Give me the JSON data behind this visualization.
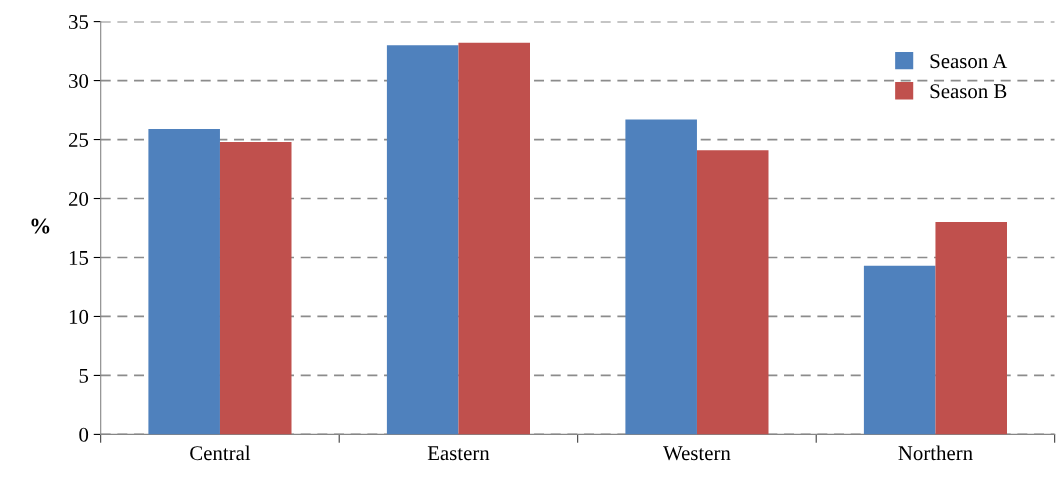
{
  "chart_data": {
    "type": "bar",
    "ylabel": "%",
    "categories": [
      "Central",
      "Eastern",
      "Western",
      "Northern"
    ],
    "series": [
      {
        "name": "Season A",
        "color": "#4f81bd",
        "values": [
          25.9,
          33.0,
          26.7,
          14.3
        ]
      },
      {
        "name": "Season B",
        "color": "#c0504d",
        "values": [
          24.8,
          33.2,
          24.1,
          18.0
        ]
      }
    ],
    "ylim": [
      0,
      35
    ],
    "yticks": [
      0,
      5,
      10,
      15,
      20,
      25,
      30,
      35
    ],
    "grid": "y",
    "legend": "top right"
  }
}
